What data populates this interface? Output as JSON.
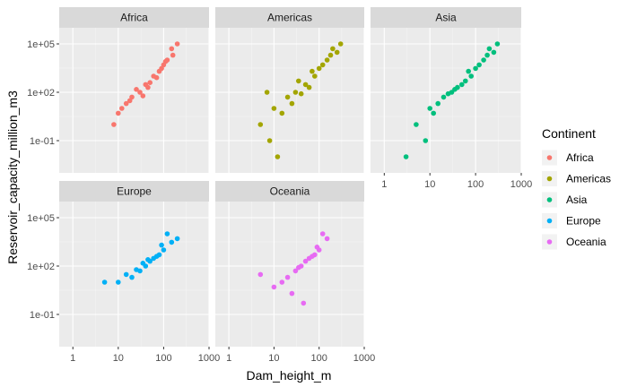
{
  "chart_data": {
    "type": "scatter",
    "layout": "facet_wrap",
    "xlabel": "Dam_height_m",
    "ylabel": "Reservoir_capacity_million_m3",
    "x_scale": "log10",
    "y_scale": "log10",
    "xlim": [
      0.5,
      1000
    ],
    "ylim": [
      0.001,
      1000000
    ],
    "x_ticks": [
      1,
      10,
      100,
      1000
    ],
    "x_tick_labels": [
      "1",
      "10",
      "100",
      "1000"
    ],
    "y_ticks": [
      0.1,
      100,
      100000
    ],
    "y_tick_labels": [
      "1e-01",
      "1e+02",
      "1e+05"
    ],
    "grid": true,
    "legend": {
      "title": "Continent",
      "placement": "right",
      "entries": [
        "Africa",
        "Americas",
        "Asia",
        "Europe",
        "Oceania"
      ]
    },
    "series": [
      {
        "name": "Africa",
        "color": "#F8766D",
        "x": [
          30,
          40,
          60,
          100,
          150,
          20,
          10,
          15,
          25,
          80,
          120,
          200,
          50,
          70,
          35,
          45,
          8,
          12,
          18,
          90,
          110,
          160
        ],
        "y": [
          100,
          300,
          1000,
          5000,
          50000,
          50,
          5,
          20,
          150,
          2000,
          10000,
          100000,
          400,
          800,
          60,
          200,
          1,
          10,
          30,
          3000,
          8000,
          20000
        ]
      },
      {
        "name": "Americas",
        "color": "#A3A500",
        "x": [
          5,
          10,
          20,
          30,
          50,
          80,
          100,
          150,
          200,
          300,
          8,
          15,
          25,
          40,
          60,
          120,
          250,
          7,
          12,
          35,
          70,
          180
        ],
        "y": [
          1,
          10,
          50,
          100,
          300,
          1000,
          3000,
          10000,
          50000,
          100000,
          0.1,
          5,
          20,
          80,
          200,
          5000,
          30000,
          100,
          0.01,
          500,
          2000,
          20000
        ]
      },
      {
        "name": "Asia",
        "color": "#00BF7D",
        "x": [
          10,
          20,
          30,
          50,
          80,
          100,
          150,
          200,
          300,
          5,
          15,
          25,
          40,
          60,
          120,
          250,
          3,
          8,
          12,
          35,
          70,
          180
        ],
        "y": [
          10,
          50,
          100,
          300,
          1000,
          3000,
          10000,
          50000,
          100000,
          1,
          20,
          80,
          200,
          500,
          5000,
          30000,
          0.01,
          0.1,
          5,
          150,
          2000,
          20000
        ]
      },
      {
        "name": "Europe",
        "color": "#00B0F6",
        "x": [
          10,
          20,
          30,
          40,
          50,
          60,
          80,
          100,
          150,
          200,
          5,
          15,
          25,
          35,
          45,
          70,
          90,
          120
        ],
        "y": [
          10,
          20,
          50,
          100,
          200,
          300,
          500,
          1000,
          3000,
          5000,
          10,
          30,
          60,
          150,
          250,
          400,
          2000,
          10000
        ]
      },
      {
        "name": "Oceania",
        "color": "#E76BF3",
        "x": [
          10,
          20,
          30,
          40,
          50,
          60,
          80,
          100,
          150,
          5,
          15,
          25,
          35,
          45,
          70,
          90,
          120
        ],
        "y": [
          5,
          20,
          50,
          100,
          200,
          300,
          500,
          1000,
          5000,
          30,
          10,
          2,
          80,
          0.5,
          400,
          1500,
          10000
        ]
      }
    ]
  }
}
